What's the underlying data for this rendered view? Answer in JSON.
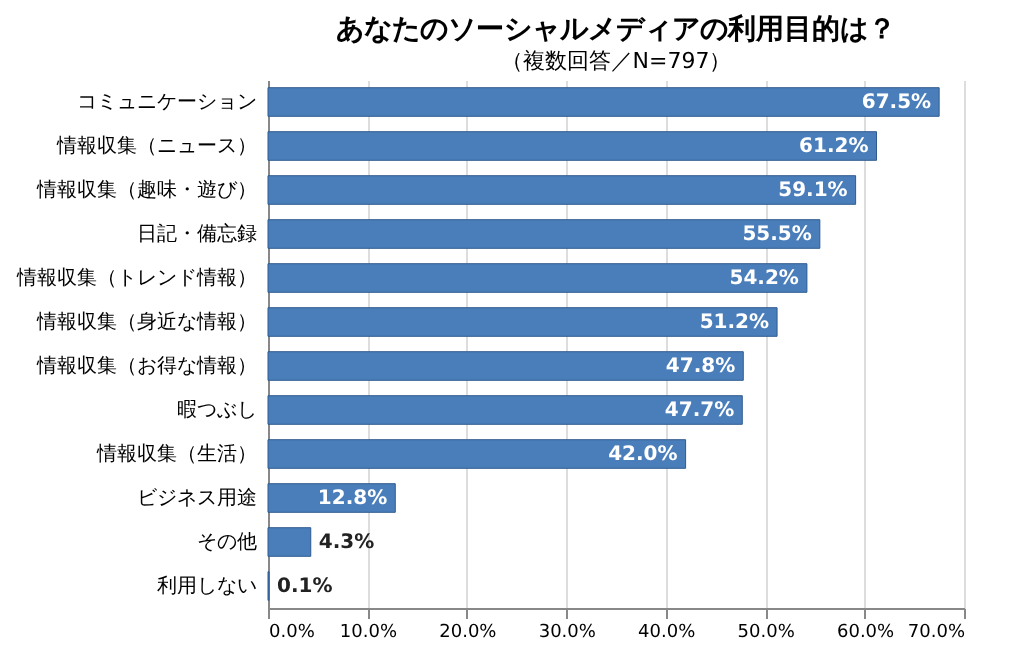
{
  "chart_data": {
    "type": "bar",
    "orientation": "horizontal",
    "title": "あなたのソーシャルメディアの利用目的は？",
    "subtitle": "（複数回答／N=797）",
    "categories": [
      "コミュニケーション",
      "情報収集（ニュース）",
      "情報収集（趣味・遊び）",
      "日記・備忘録",
      "情報収集（トレンド情報）",
      "情報収集（身近な情報）",
      "情報収集（お得な情報）",
      "暇つぶし",
      "情報収集（生活）",
      "ビジネス用途",
      "その他",
      "利用しない"
    ],
    "values": [
      67.5,
      61.2,
      59.1,
      55.5,
      54.2,
      51.2,
      47.8,
      47.7,
      42.0,
      12.8,
      4.3,
      0.1
    ],
    "value_labels": [
      "67.5%",
      "61.2%",
      "59.1%",
      "55.5%",
      "54.2%",
      "51.2%",
      "47.8%",
      "47.7%",
      "42.0%",
      "12.8%",
      "4.3%",
      "0.1%"
    ],
    "color": "#4a7ebb",
    "xlim": [
      0,
      70
    ],
    "xticks": [
      {
        "value": 0,
        "label": "0.0%"
      },
      {
        "value": 10,
        "label": "10.0%"
      },
      {
        "value": 20,
        "label": "20.0%"
      },
      {
        "value": 30,
        "label": "30.0%"
      },
      {
        "value": 40,
        "label": "40.0%"
      },
      {
        "value": 50,
        "label": "50.0%"
      },
      {
        "value": 60,
        "label": "60.0%"
      },
      {
        "value": 70,
        "label": "70.0%"
      }
    ],
    "grid": "x"
  }
}
